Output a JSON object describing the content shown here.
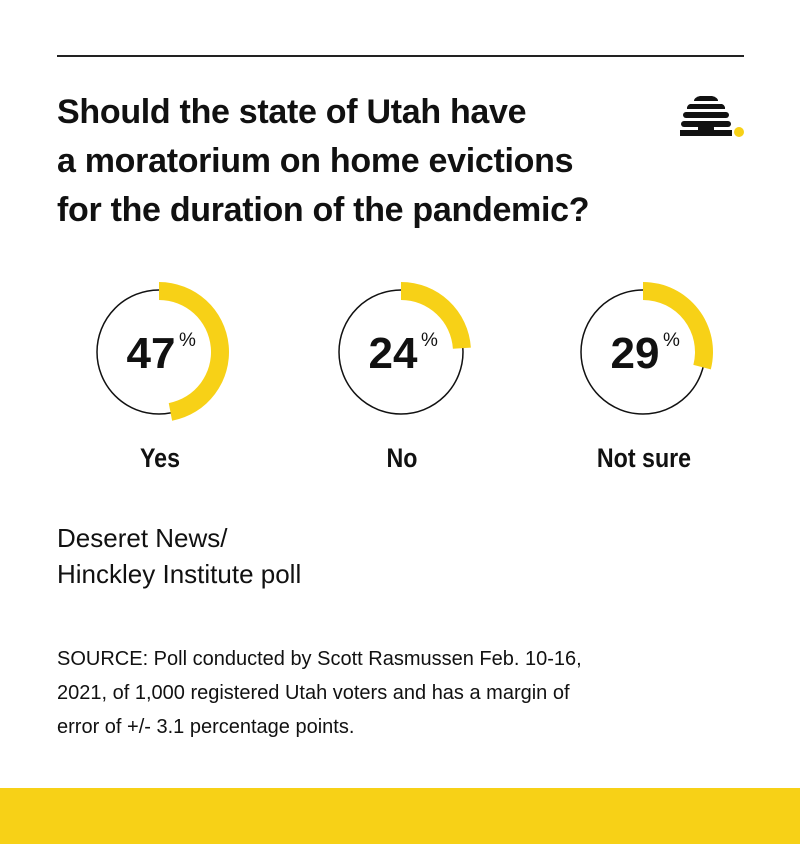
{
  "title_lines": [
    "Should the state of Utah have",
    "a moratorium on home evictions",
    "for the duration of the pandemic?"
  ],
  "logo_icon": "beehive-icon",
  "chart_data": {
    "type": "pie",
    "style": "donut",
    "title": "Should the state of Utah have a moratorium on home evictions for the duration of the pandemic?",
    "unit": "%",
    "categories": [
      "Yes",
      "No",
      "Not sure"
    ],
    "values": [
      47,
      24,
      29
    ],
    "value_labels": [
      "47",
      "24",
      "29"
    ],
    "percent_sign": "%",
    "arc_color": "#f7d117",
    "ring_color": "#111111"
  },
  "poll_name_lines": [
    "Deseret News/",
    "Hinckley Institute poll"
  ],
  "source_lines": [
    "SOURCE: Poll conducted by Scott Rasmussen Feb. 10-16,",
    "2021, of 1,000 registered Utah voters and has a margin of",
    "error of +/- 3.1 percentage points."
  ],
  "colors": {
    "accent": "#f7d117",
    "text": "#111111",
    "background": "#ffffff"
  }
}
